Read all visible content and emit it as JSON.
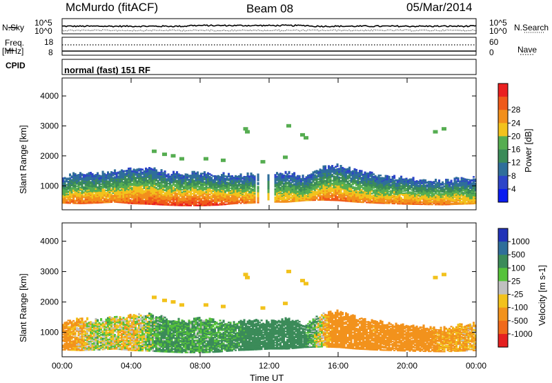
{
  "header": {
    "station": "McMurdo (fitACF)",
    "beam": "Beam 08",
    "date": "05/Mar/2014"
  },
  "top_panels": {
    "nsky_label": "N.Sky",
    "nsearch_label": "N.Search",
    "freq_label_1": "Freq.",
    "freq_label_2": "[MHz]",
    "nave_label": "Nave",
    "cpid_label": "CPID",
    "cpid_value": "normal (fast) 151 RF",
    "noise_left_ticks": [
      "10^5",
      "10^0"
    ],
    "noise_right_ticks": [
      "10^5",
      "10^0"
    ],
    "freq_left_ticks": [
      "18",
      "8"
    ],
    "freq_right_ticks": [
      "60",
      "0"
    ]
  },
  "chart_data": [
    {
      "type": "heatmap",
      "title": "",
      "xlabel": "Time UT",
      "ylabel": "Slant Range [km]",
      "xlim_hours": [
        0,
        24
      ],
      "x_ticks": [
        "00:00",
        "04:00",
        "08:00",
        "12:00",
        "16:00",
        "20:00",
        "00:00"
      ],
      "ylim": [
        200,
        4600
      ],
      "y_ticks": [
        1000,
        2000,
        3000,
        4000
      ],
      "colorbar": {
        "label": "Power [dB]",
        "ticks": [
          4,
          8,
          12,
          16,
          20,
          24,
          28
        ],
        "colors": [
          "#0a1cf0",
          "#2d44c8",
          "#2f6e9a",
          "#3b8b59",
          "#56ad51",
          "#f2c21c",
          "#f28f1c",
          "#ef5a1a",
          "#ea2020"
        ]
      },
      "echo_profile": [
        {
          "t": 0.0,
          "lo": 420,
          "hi": 1300,
          "p": 24
        },
        {
          "t": 1.0,
          "lo": 400,
          "hi": 1450,
          "p": 26
        },
        {
          "t": 2.0,
          "lo": 420,
          "hi": 1400,
          "p": 25
        },
        {
          "t": 3.0,
          "lo": 450,
          "hi": 1500,
          "p": 24
        },
        {
          "t": 4.0,
          "lo": 400,
          "hi": 1550,
          "p": 27
        },
        {
          "t": 5.0,
          "lo": 380,
          "hi": 1600,
          "p": 28
        },
        {
          "t": 6.0,
          "lo": 350,
          "hi": 1450,
          "p": 28
        },
        {
          "t": 7.0,
          "lo": 330,
          "hi": 1400,
          "p": 29
        },
        {
          "t": 8.0,
          "lo": 330,
          "hi": 1450,
          "p": 29
        },
        {
          "t": 9.0,
          "lo": 350,
          "hi": 1400,
          "p": 28
        },
        {
          "t": 10.0,
          "lo": 400,
          "hi": 1350,
          "p": 26
        },
        {
          "t": 11.0,
          "lo": 420,
          "hi": 1400,
          "p": 24
        },
        {
          "t": 12.0,
          "lo": 450,
          "hi": 1350,
          "p": 22
        },
        {
          "t": 13.0,
          "lo": 450,
          "hi": 1450,
          "p": 22
        },
        {
          "t": 14.0,
          "lo": 500,
          "hi": 1300,
          "p": 20
        },
        {
          "t": 15.0,
          "lo": 520,
          "hi": 1600,
          "p": 25
        },
        {
          "t": 16.0,
          "lo": 500,
          "hi": 1700,
          "p": 26
        },
        {
          "t": 17.0,
          "lo": 450,
          "hi": 1500,
          "p": 24
        },
        {
          "t": 18.0,
          "lo": 420,
          "hi": 1400,
          "p": 23
        },
        {
          "t": 19.0,
          "lo": 400,
          "hi": 1300,
          "p": 24
        },
        {
          "t": 20.0,
          "lo": 380,
          "hi": 1250,
          "p": 25
        },
        {
          "t": 21.0,
          "lo": 370,
          "hi": 1200,
          "p": 24
        },
        {
          "t": 22.0,
          "lo": 360,
          "hi": 1150,
          "p": 25
        },
        {
          "t": 23.0,
          "lo": 380,
          "hi": 1250,
          "p": 22
        },
        {
          "t": 24.0,
          "lo": 400,
          "hi": 1300,
          "p": 20
        }
      ]
    },
    {
      "type": "heatmap",
      "title": "",
      "xlabel": "Time UT",
      "ylabel": "Slant Range [km]",
      "xlim_hours": [
        0,
        24
      ],
      "x_ticks": [
        "00:00",
        "04:00",
        "08:00",
        "12:00",
        "16:00",
        "20:00",
        "00:00"
      ],
      "ylim": [
        200,
        4600
      ],
      "y_ticks": [
        1000,
        2000,
        3000,
        4000
      ],
      "colorbar": {
        "label": "Velocity [m s-1]",
        "ticks": [
          "1000",
          "500",
          "100",
          "25",
          "-25",
          "-100",
          "-500",
          "-1000"
        ],
        "colors": [
          "#2233b8",
          "#2f6e9a",
          "#3b8b59",
          "#56c23a",
          "#c0c0c0",
          "#f2c21c",
          "#f2921c",
          "#f06a1a",
          "#e52020"
        ]
      },
      "velocity_trend": [
        {
          "t": 0.0,
          "v": -200
        },
        {
          "t": 2.0,
          "v": 20
        },
        {
          "t": 4.0,
          "v": -60
        },
        {
          "t": 6.0,
          "v": 150
        },
        {
          "t": 8.0,
          "v": 120
        },
        {
          "t": 10.0,
          "v": 150
        },
        {
          "t": 12.0,
          "v": 300
        },
        {
          "t": 14.0,
          "v": 200
        },
        {
          "t": 16.0,
          "v": -300
        },
        {
          "t": 18.0,
          "v": -200
        },
        {
          "t": 20.0,
          "v": -300
        },
        {
          "t": 22.0,
          "v": -150
        },
        {
          "t": 24.0,
          "v": -100
        }
      ]
    }
  ]
}
